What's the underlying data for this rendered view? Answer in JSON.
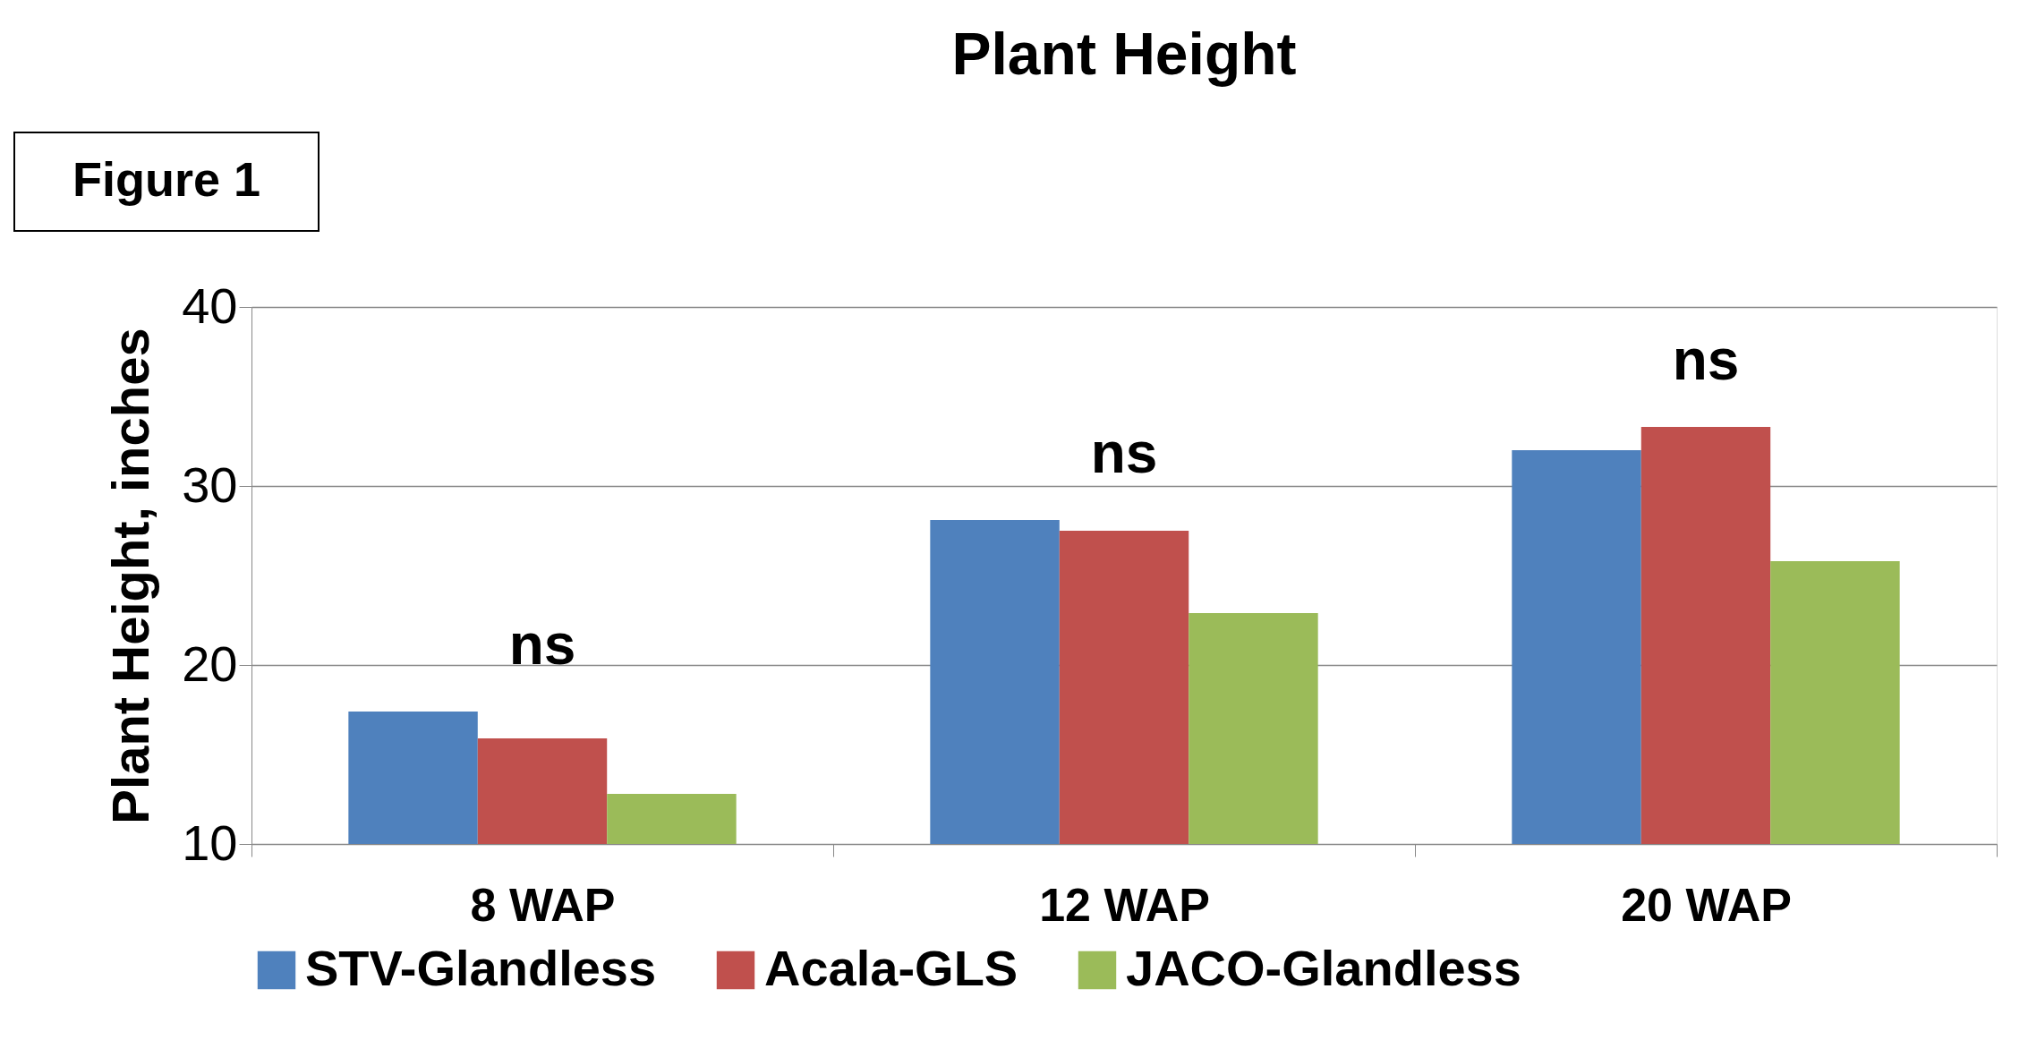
{
  "chart_data": {
    "type": "bar",
    "title": "Plant Height",
    "ylabel": "Plant Height, inches",
    "categories": [
      "8 WAP",
      "12 WAP",
      "20 WAP"
    ],
    "series": [
      {
        "name": "STV-Glandless",
        "color": "#4f81bd",
        "values": [
          17.4,
          28.1,
          32.0
        ]
      },
      {
        "name": "Acala-GLS",
        "color": "#c0504d",
        "values": [
          15.9,
          27.5,
          33.3
        ]
      },
      {
        "name": "JACO-Glandless",
        "color": "#9bbb59",
        "values": [
          12.8,
          22.9,
          25.8
        ]
      }
    ],
    "ylim": [
      10,
      40
    ],
    "yticks": [
      10,
      20,
      30,
      40
    ],
    "grid": "y",
    "legend": "bottom",
    "annotations": [
      "Figure 1",
      "ns",
      "ns",
      "ns"
    ]
  }
}
